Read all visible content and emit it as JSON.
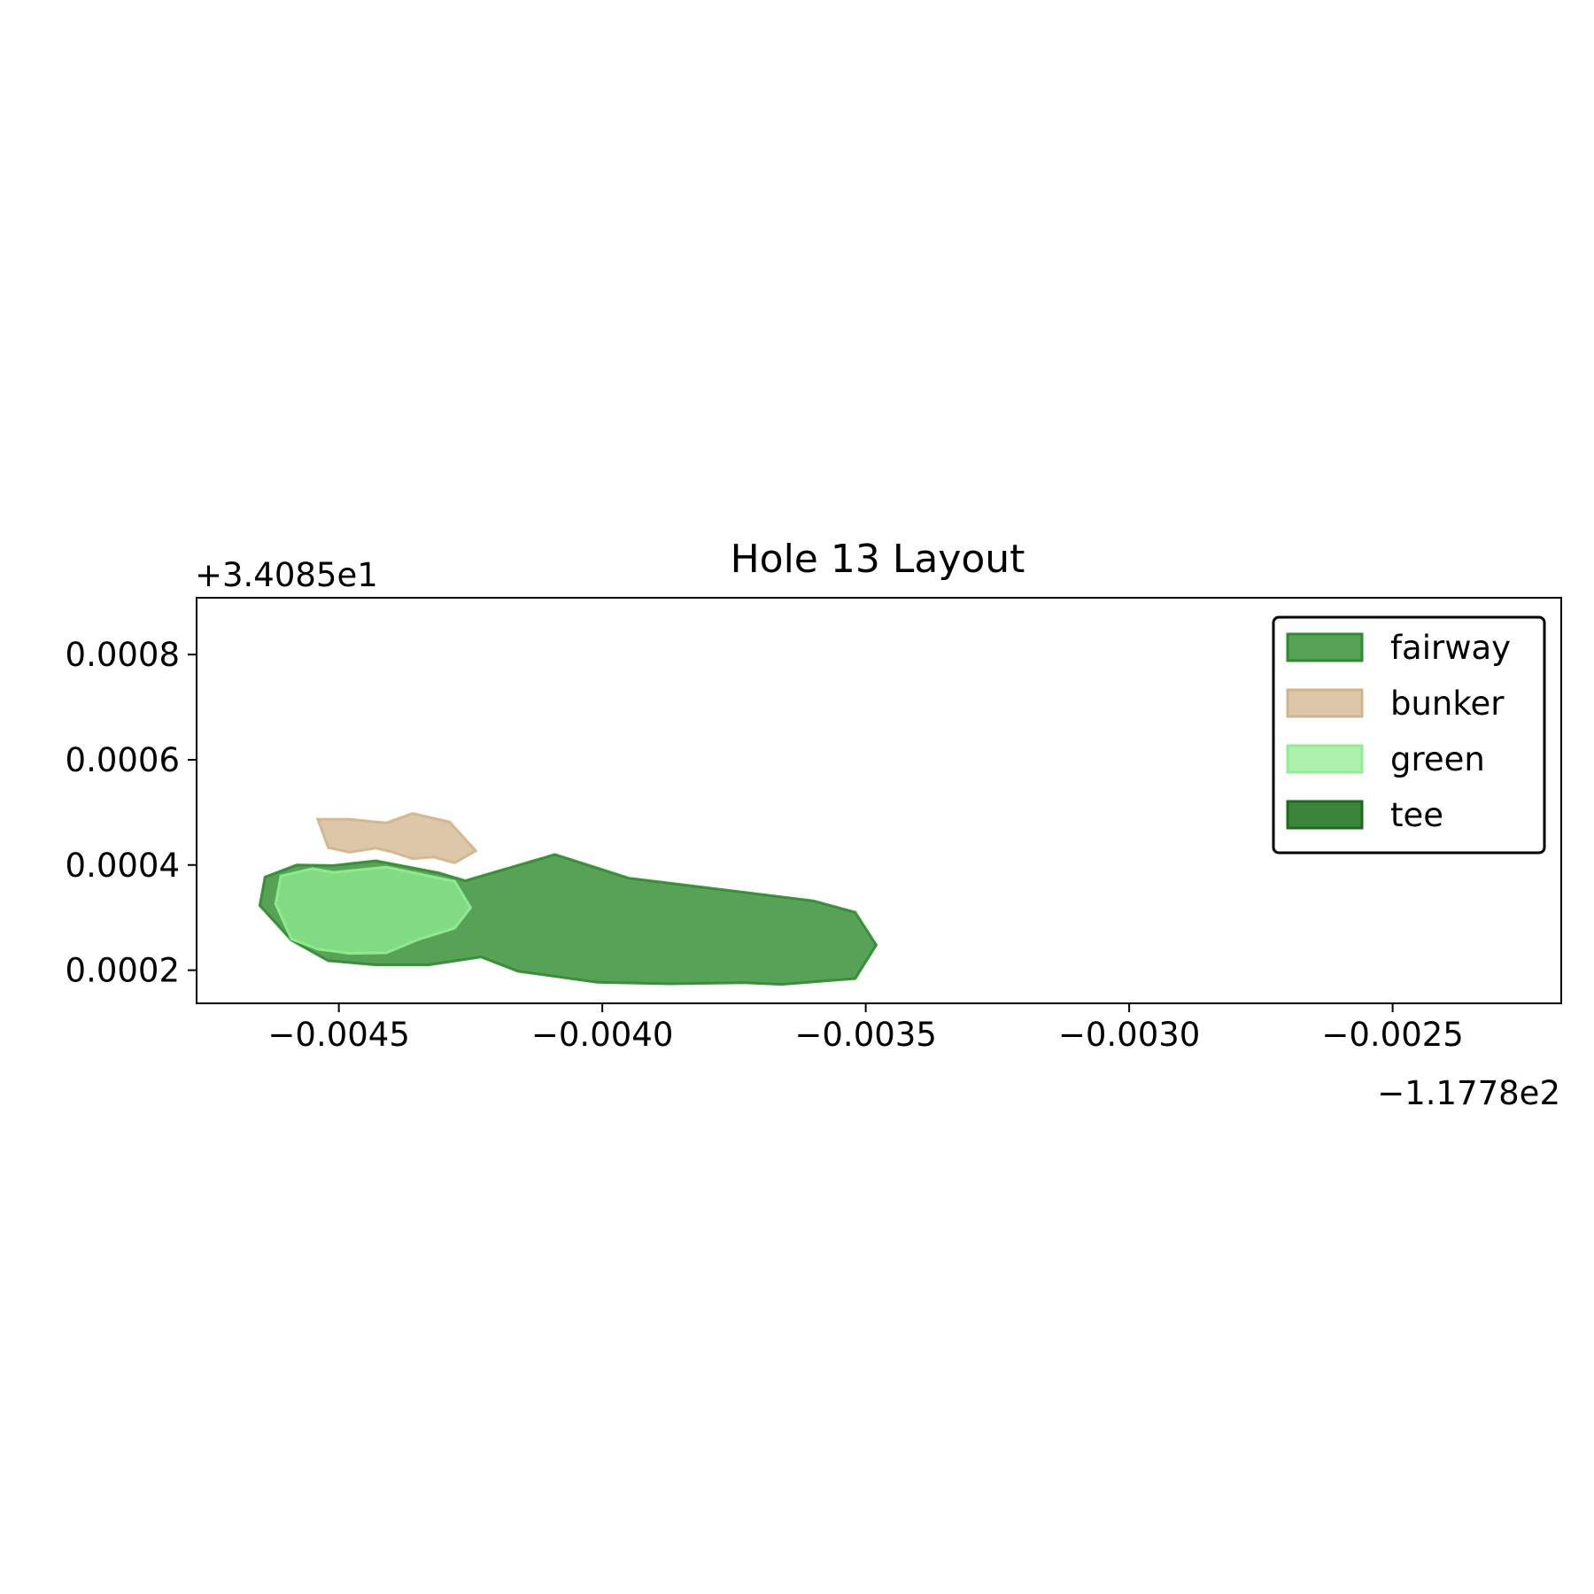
{
  "chart_data": {
    "type": "area",
    "title": "Hole 13 Layout",
    "x_offset_label": "−1.1778e2",
    "y_offset_label": "+3.4085e1",
    "x_offset": -117.78,
    "y_offset": 34.085,
    "xlim": [
      -0.00477,
      -0.00218
    ],
    "ylim": [
      0.000137,
      0.000908
    ],
    "x_ticks": [
      -0.0045,
      -0.004,
      -0.0035,
      -0.003,
      -0.0025
    ],
    "x_tick_labels": [
      "−0.0045",
      "−0.0040",
      "−0.0035",
      "−0.0030",
      "−0.0025"
    ],
    "y_ticks": [
      0.0002,
      0.0004,
      0.0006,
      0.0008
    ],
    "y_tick_labels": [
      "0.0002",
      "0.0004",
      "0.0006",
      "0.0008"
    ],
    "grid": false,
    "legend_position": "upper right",
    "series": [
      {
        "name": "fairway",
        "color": "#2e8b2e",
        "fill_opacity": 0.8,
        "points": [
          [
            -0.00464,
            0.000377
          ],
          [
            -0.00458,
            0.0004
          ],
          [
            -0.00451,
            0.000399
          ],
          [
            -0.00443,
            0.000408
          ],
          [
            -0.00431,
            0.000385
          ],
          [
            -0.00426,
            0.00037
          ],
          [
            -0.00409,
            0.00042
          ],
          [
            -0.00395,
            0.000375
          ],
          [
            -0.0036,
            0.000332
          ],
          [
            -0.00352,
            0.00031
          ],
          [
            -0.00348,
            0.000248
          ],
          [
            -0.00352,
            0.000184
          ],
          [
            -0.00366,
            0.000173
          ],
          [
            -0.00373,
            0.000176
          ],
          [
            -0.00387,
            0.000174
          ],
          [
            -0.00401,
            0.000177
          ],
          [
            -0.00416,
            0.000198
          ],
          [
            -0.00423,
            0.000225
          ],
          [
            -0.00433,
            0.00021
          ],
          [
            -0.00443,
            0.00021
          ],
          [
            -0.00452,
            0.000218
          ],
          [
            -0.00459,
            0.000257
          ],
          [
            -0.00465,
            0.000323
          ]
        ]
      },
      {
        "name": "bunker",
        "color": "#d2b48c",
        "fill_opacity": 0.75,
        "points": [
          [
            -0.00454,
            0.000487
          ],
          [
            -0.00448,
            0.000487
          ],
          [
            -0.00441,
            0.00048
          ],
          [
            -0.00436,
            0.000498
          ],
          [
            -0.00429,
            0.000482
          ],
          [
            -0.00424,
            0.000427
          ],
          [
            -0.00428,
            0.000404
          ],
          [
            -0.00432,
            0.000415
          ],
          [
            -0.00436,
            0.000412
          ],
          [
            -0.0044,
            0.000425
          ],
          [
            -0.00443,
            0.000432
          ],
          [
            -0.00448,
            0.000424
          ],
          [
            -0.00452,
            0.000433
          ]
        ]
      },
      {
        "name": "green",
        "color": "#90ee90",
        "fill_opacity": 0.75,
        "points": [
          [
            -0.00461,
            0.000379
          ],
          [
            -0.00455,
            0.000393
          ],
          [
            -0.00451,
            0.000386
          ],
          [
            -0.00441,
            0.000396
          ],
          [
            -0.00428,
            0.000369
          ],
          [
            -0.00425,
            0.000319
          ],
          [
            -0.00428,
            0.00028
          ],
          [
            -0.00435,
            0.000258
          ],
          [
            -0.00441,
            0.000233
          ],
          [
            -0.00448,
            0.000232
          ],
          [
            -0.00454,
            0.00024
          ],
          [
            -0.00459,
            0.000259
          ],
          [
            -0.00462,
            0.000326
          ]
        ]
      },
      {
        "name": "tee",
        "color": "#1a6e1a",
        "fill_opacity": 0.85,
        "points": []
      }
    ]
  }
}
